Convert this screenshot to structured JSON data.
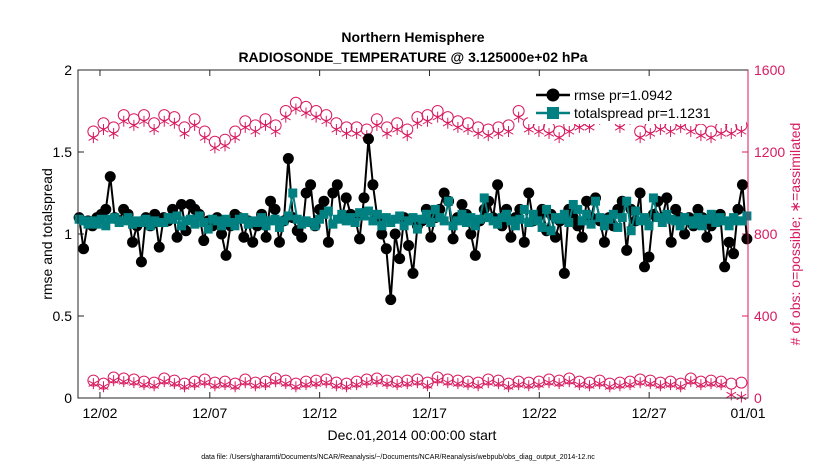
{
  "chart_data": {
    "type": "line",
    "title": "Northern Hemisphere",
    "subtitle": "RADIOSONDE_TEMPERATURE @ 3.125000e+02 hPa",
    "xlabel": "Dec.01,2014 00:00:00 start",
    "ylabel": "rmse and totalspread",
    "ylabel_right": "# of obs: o=possible; ∗=assimilated",
    "footnote": "data file: /Users/gharamti/Documents/NCAR/Reanalysis/~/Documents/NCAR/Reanalysis/webpub/obs_diag_output_2014-12.nc",
    "x_range_days": [
      0.5,
      31.0
    ],
    "x_ticks": [
      {
        "day": 1.5,
        "label": "12/02"
      },
      {
        "day": 6.5,
        "label": "12/07"
      },
      {
        "day": 11.5,
        "label": "12/12"
      },
      {
        "day": 16.5,
        "label": "12/17"
      },
      {
        "day": 21.5,
        "label": "12/22"
      },
      {
        "day": 26.5,
        "label": "12/27"
      },
      {
        "day": 31.0,
        "label": "01/01"
      }
    ],
    "ylim": [
      0,
      2
    ],
    "y_ticks": [
      "0",
      "0.5",
      "1",
      "1.5",
      "2"
    ],
    "ylim_right": [
      0,
      1600
    ],
    "y_ticks_right": [
      "0",
      "400",
      "800",
      "1200",
      "1600"
    ],
    "colors": {
      "rmse": "#000000",
      "totalspread": "#008080",
      "obs": "#d81b60"
    },
    "legend": {
      "position": "top-right",
      "entries": [
        "rmse pr=1.0942",
        "totalspread pr=1.1231"
      ]
    },
    "series": [
      {
        "name": "rmse",
        "axis": "left",
        "values": [
          1.1,
          0.91,
          1.08,
          1.05,
          1.1,
          1.12,
          1.15,
          1.35,
          1.1,
          1.08,
          1.15,
          1.12,
          0.95,
          1.05,
          0.83,
          1.1,
          1.05,
          1.12,
          0.92,
          1.1,
          1.08,
          1.15,
          0.98,
          1.18,
          1.02,
          1.18,
          1.15,
          1.12,
          0.96,
          1.08,
          1.05,
          1.1,
          1.0,
          0.87,
          1.05,
          1.12,
          1.1,
          0.98,
          1.08,
          0.95,
          1.05,
          1.12,
          0.98,
          1.2,
          1.15,
          0.95,
          1.08,
          1.46,
          1.1,
          1.02,
          0.98,
          1.25,
          1.3,
          1.05,
          1.15,
          1.2,
          0.95,
          1.25,
          1.3,
          1.1,
          1.22,
          1.12,
          1.1,
          0.97,
          1.22,
          1.58,
          1.3,
          1.1,
          1.0,
          0.91,
          0.6,
          1.0,
          0.85,
          1.1,
          0.93,
          0.76,
          1.05,
          1.08,
          1.15,
          0.98,
          1.1,
          1.15,
          1.25,
          1.2,
          0.97,
          1.1,
          1.18,
          1.12,
          1.0,
          0.87,
          1.08,
          1.15,
          1.2,
          1.1,
          1.3,
          1.05,
          1.15,
          0.98,
          1.1,
          1.15,
          0.95,
          1.25,
          1.08,
          1.1,
          1.15,
          1.02,
          1.12,
          0.98,
          1.08,
          0.76,
          1.15,
          1.1,
          1.05,
          0.98,
          1.2,
          1.1,
          1.22,
          1.08,
          0.95,
          1.1,
          1.05,
          1.15,
          1.2,
          0.9,
          1.15,
          1.08,
          1.25,
          0.8,
          0.86,
          1.12,
          1.2,
          1.1,
          1.22,
          0.95,
          1.15,
          1.1,
          1.0,
          1.1,
          1.05,
          1.15,
          1.1,
          0.98,
          1.05,
          1.08,
          1.12,
          0.8,
          0.95,
          0.88,
          1.15,
          1.3,
          0.97
        ]
      },
      {
        "name": "totalspread",
        "axis": "left",
        "values": [
          1.09,
          1.08,
          1.06,
          1.08,
          1.06,
          1.09,
          1.05,
          1.09,
          1.1,
          1.07,
          1.08,
          1.1,
          1.06,
          1.08,
          1.07,
          1.09,
          1.05,
          1.08,
          1.07,
          1.07,
          1.1,
          1.09,
          1.11,
          1.05,
          1.08,
          1.09,
          1.06,
          1.11,
          1.07,
          1.03,
          1.09,
          1.08,
          1.05,
          1.09,
          1.07,
          1.05,
          1.09,
          1.1,
          1.06,
          1.08,
          1.07,
          1.1,
          1.05,
          1.08,
          1.09,
          1.04,
          1.08,
          1.11,
          1.25,
          1.09,
          1.06,
          1.08,
          1.07,
          1.05,
          1.09,
          1.12,
          1.14,
          1.06,
          1.09,
          1.12,
          1.08,
          1.1,
          1.07,
          1.13,
          1.11,
          1.14,
          1.08,
          1.12,
          1.05,
          1.1,
          1.07,
          1.09,
          1.11,
          1.05,
          1.08,
          1.1,
          1.03,
          1.09,
          1.12,
          1.07,
          1.15,
          1.1,
          1.08,
          1.2,
          1.05,
          1.08,
          1.12,
          1.07,
          1.1,
          1.05,
          1.09,
          1.22,
          1.1,
          1.08,
          1.06,
          1.1,
          1.12,
          1.08,
          1.05,
          1.09,
          1.15,
          1.07,
          1.12,
          1.08,
          1.04,
          1.15,
          1.02,
          1.1,
          1.09,
          1.12,
          1.07,
          1.18,
          1.15,
          1.08,
          1.12,
          1.06,
          1.2,
          1.1,
          1.05,
          1.09,
          1.12,
          1.04,
          1.1,
          1.2,
          1.02,
          1.14,
          1.08,
          1.1,
          1.05,
          1.22,
          1.1,
          1.07,
          1.12,
          1.09,
          1.08,
          1.05,
          1.1,
          1.08,
          1.06,
          1.1,
          1.05,
          1.09,
          1.12,
          1.07,
          1.1,
          1.08,
          1.05,
          1.1,
          1.08,
          1.08,
          1.11
        ]
      },
      {
        "name": "obs_possible",
        "axis": "right",
        "values": [
          1300,
          1340,
          1320,
          1380,
          1360,
          1380,
          1340,
          1380,
          1370,
          1320,
          1360,
          1300,
          1250,
          1260,
          1300,
          1350,
          1330,
          1360,
          1330,
          1400,
          1440,
          1420,
          1400,
          1380,
          1340,
          1320,
          1320,
          1310,
          1360,
          1320,
          1340,
          1310,
          1370,
          1380,
          1400,
          1370,
          1350,
          1340,
          1320,
          1310,
          1320,
          1330,
          1400,
          1340,
          1330,
          1320,
          1300,
          1330,
          1350,
          1350,
          1390,
          1440,
          1350,
          1390,
          1300,
          1320,
          1340,
          1330,
          1350,
          1330,
          1310,
          1300,
          1320,
          1320,
          1330
        ]
      },
      {
        "name": "obs_assimilated",
        "axis": "right",
        "values": [
          1270,
          1310,
          1290,
          1350,
          1330,
          1350,
          1310,
          1350,
          1340,
          1290,
          1330,
          1270,
          1220,
          1230,
          1270,
          1320,
          1300,
          1330,
          1300,
          1370,
          1410,
          1390,
          1370,
          1350,
          1310,
          1290,
          1290,
          1280,
          1330,
          1290,
          1310,
          1280,
          1340,
          1350,
          1370,
          1340,
          1320,
          1310,
          1290,
          1280,
          1290,
          1300,
          1370,
          1310,
          1300,
          1290,
          1270,
          1300,
          1320,
          1320,
          1360,
          1410,
          1320,
          1360,
          1270,
          1290,
          1310,
          1300,
          1320,
          1300,
          1280,
          1270,
          1290,
          1290,
          1300
        ]
      },
      {
        "name": "obs_possible_low",
        "axis": "right",
        "values": [
          85,
          70,
          100,
          95,
          90,
          80,
          75,
          95,
          85,
          70,
          80,
          90,
          75,
          80,
          70,
          90,
          75,
          80,
          95,
          85,
          70,
          80,
          85,
          90,
          75,
          70,
          80,
          90,
          95,
          85,
          80,
          85,
          90,
          75,
          100,
          90,
          85,
          80,
          75,
          90,
          85,
          70,
          80,
          75,
          80,
          90,
          85,
          95,
          80,
          75,
          85,
          70,
          75,
          80,
          90,
          85,
          75,
          80,
          70,
          95,
          80,
          85,
          80,
          70,
          75
        ]
      },
      {
        "name": "obs_assimilated_low",
        "axis": "right",
        "values": [
          70,
          55,
          85,
          80,
          75,
          65,
          60,
          80,
          70,
          55,
          65,
          75,
          60,
          65,
          55,
          75,
          60,
          65,
          80,
          70,
          55,
          65,
          70,
          75,
          60,
          55,
          65,
          75,
          80,
          70,
          65,
          70,
          75,
          60,
          85,
          75,
          70,
          65,
          60,
          75,
          70,
          55,
          65,
          60,
          65,
          75,
          70,
          80,
          65,
          60,
          70,
          55,
          60,
          65,
          75,
          70,
          60,
          65,
          55,
          80,
          65,
          70,
          65,
          15,
          5
        ]
      }
    ]
  }
}
